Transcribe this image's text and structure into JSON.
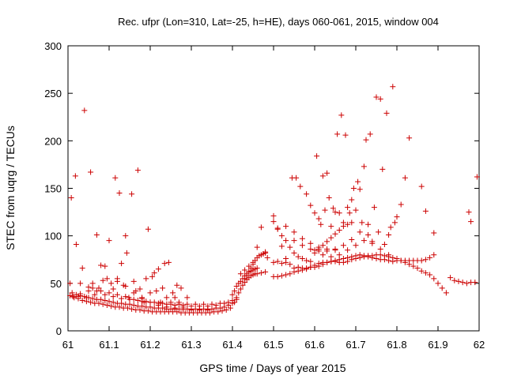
{
  "chart_data": {
    "type": "scatter",
    "title": "Rec. ufpr (Lon=310, Lat=-25, h=HE), days 060-061, 2015, window 004",
    "xlabel": "GPS time / Days of year 2015",
    "ylabel": "STEC from uqrg / TECUs",
    "xlim": [
      61,
      62
    ],
    "ylim": [
      0,
      300
    ],
    "xticks": [
      "61",
      "61.1",
      "61.2",
      "61.3",
      "61.4",
      "61.5",
      "61.6",
      "61.7",
      "61.8",
      "61.9",
      "62"
    ],
    "yticks": [
      "0",
      "50",
      "100",
      "150",
      "200",
      "250",
      "300"
    ],
    "grid": false,
    "marker": "plus",
    "color": "#cc0000",
    "points": [
      [
        61.005,
        50
      ],
      [
        61.008,
        140
      ],
      [
        61.012,
        36
      ],
      [
        61.018,
        163
      ],
      [
        61.02,
        91
      ],
      [
        61.025,
        36
      ],
      [
        61.03,
        39
      ],
      [
        61.035,
        66
      ],
      [
        61.04,
        232
      ],
      [
        61.045,
        35
      ],
      [
        61.05,
        42
      ],
      [
        61.055,
        167
      ],
      [
        61.06,
        50
      ],
      [
        61.065,
        38
      ],
      [
        61.07,
        101
      ],
      [
        61.075,
        45
      ],
      [
        61.08,
        69
      ],
      [
        61.085,
        53
      ],
      [
        61.09,
        68
      ],
      [
        61.095,
        55
      ],
      [
        61.1,
        95
      ],
      [
        61.105,
        50
      ],
      [
        61.11,
        44
      ],
      [
        61.115,
        161
      ],
      [
        61.12,
        52
      ],
      [
        61.125,
        145
      ],
      [
        61.13,
        71
      ],
      [
        61.135,
        48
      ],
      [
        61.14,
        100
      ],
      [
        61.143,
        82
      ],
      [
        61.148,
        35
      ],
      [
        61.155,
        144
      ],
      [
        61.16,
        52
      ],
      [
        61.165,
        42
      ],
      [
        61.17,
        169
      ],
      [
        61.175,
        44
      ],
      [
        61.18,
        35
      ],
      [
        61.185,
        30
      ],
      [
        61.19,
        55
      ],
      [
        61.195,
        107
      ],
      [
        61.2,
        40
      ],
      [
        61.205,
        57
      ],
      [
        61.21,
        61
      ],
      [
        61.215,
        42
      ],
      [
        61.22,
        65
      ],
      [
        61.225,
        30
      ],
      [
        61.23,
        45
      ],
      [
        61.235,
        71
      ],
      [
        61.24,
        35
      ],
      [
        61.245,
        72
      ],
      [
        61.25,
        30
      ],
      [
        61.255,
        40
      ],
      [
        61.26,
        35
      ],
      [
        61.265,
        48
      ],
      [
        61.27,
        30
      ],
      [
        61.275,
        45
      ],
      [
        61.28,
        25
      ],
      [
        61.29,
        35
      ],
      [
        61.005,
        37
      ],
      [
        61.015,
        35
      ],
      [
        61.025,
        34
      ],
      [
        61.035,
        32
      ],
      [
        61.045,
        31
      ],
      [
        61.055,
        30
      ],
      [
        61.065,
        29
      ],
      [
        61.075,
        29
      ],
      [
        61.085,
        28
      ],
      [
        61.095,
        27
      ],
      [
        61.105,
        26
      ],
      [
        61.115,
        25
      ],
      [
        61.125,
        25
      ],
      [
        61.135,
        24
      ],
      [
        61.145,
        24
      ],
      [
        61.155,
        23
      ],
      [
        61.165,
        22
      ],
      [
        61.175,
        22
      ],
      [
        61.185,
        21
      ],
      [
        61.195,
        21
      ],
      [
        61.205,
        20
      ],
      [
        61.215,
        20
      ],
      [
        61.225,
        20
      ],
      [
        61.235,
        20
      ],
      [
        61.245,
        20
      ],
      [
        61.255,
        20
      ],
      [
        61.265,
        20
      ],
      [
        61.275,
        19
      ],
      [
        61.285,
        19
      ],
      [
        61.295,
        19
      ],
      [
        61.305,
        19
      ],
      [
        61.315,
        19
      ],
      [
        61.325,
        19
      ],
      [
        61.335,
        19
      ],
      [
        61.345,
        19
      ],
      [
        61.355,
        20
      ],
      [
        61.365,
        20
      ],
      [
        61.375,
        21
      ],
      [
        61.385,
        22
      ],
      [
        61.395,
        24
      ],
      [
        61.01,
        40
      ],
      [
        61.02,
        38
      ],
      [
        61.03,
        37
      ],
      [
        61.04,
        36
      ],
      [
        61.05,
        35
      ],
      [
        61.06,
        34
      ],
      [
        61.07,
        33
      ],
      [
        61.08,
        33
      ],
      [
        61.09,
        32
      ],
      [
        61.1,
        31
      ],
      [
        61.11,
        30
      ],
      [
        61.12,
        29
      ],
      [
        61.13,
        29
      ],
      [
        61.14,
        28
      ],
      [
        61.15,
        28
      ],
      [
        61.16,
        27
      ],
      [
        61.17,
        26
      ],
      [
        61.18,
        26
      ],
      [
        61.19,
        25
      ],
      [
        61.2,
        25
      ],
      [
        61.21,
        24
      ],
      [
        61.22,
        24
      ],
      [
        61.23,
        24
      ],
      [
        61.24,
        23
      ],
      [
        61.25,
        23
      ],
      [
        61.26,
        23
      ],
      [
        61.27,
        23
      ],
      [
        61.28,
        23
      ],
      [
        61.29,
        23
      ],
      [
        61.3,
        23
      ],
      [
        61.31,
        23
      ],
      [
        61.32,
        23
      ],
      [
        61.33,
        23
      ],
      [
        61.34,
        23
      ],
      [
        61.35,
        23
      ],
      [
        61.36,
        24
      ],
      [
        61.37,
        24
      ],
      [
        61.38,
        25
      ],
      [
        61.39,
        27
      ],
      [
        61.4,
        29
      ],
      [
        61.03,
        50
      ],
      [
        61.05,
        46
      ],
      [
        61.07,
        42
      ],
      [
        61.09,
        38
      ],
      [
        61.11,
        36
      ],
      [
        61.13,
        34
      ],
      [
        61.15,
        33
      ],
      [
        61.17,
        32
      ],
      [
        61.19,
        31
      ],
      [
        61.21,
        30
      ],
      [
        61.23,
        29
      ],
      [
        61.25,
        28
      ],
      [
        61.27,
        28
      ],
      [
        61.29,
        28
      ],
      [
        61.31,
        28
      ],
      [
        61.33,
        28
      ],
      [
        61.35,
        28
      ],
      [
        61.37,
        29
      ],
      [
        61.39,
        30
      ],
      [
        61.41,
        33
      ],
      [
        61.06,
        45
      ],
      [
        61.08,
        42
      ],
      [
        61.1,
        40
      ],
      [
        61.12,
        38
      ],
      [
        61.14,
        36
      ],
      [
        61.16,
        33
      ],
      [
        61.18,
        31
      ],
      [
        61.2,
        30
      ],
      [
        61.22,
        29
      ],
      [
        61.24,
        28
      ],
      [
        61.26,
        27
      ],
      [
        61.28,
        27
      ],
      [
        61.3,
        26
      ],
      [
        61.32,
        26
      ],
      [
        61.34,
        26
      ],
      [
        61.36,
        27
      ],
      [
        61.38,
        29
      ],
      [
        61.4,
        32
      ],
      [
        61.12,
        55
      ],
      [
        61.14,
        47
      ],
      [
        61.16,
        40
      ],
      [
        61.18,
        34
      ],
      [
        61.2,
        30
      ],
      [
        61.22,
        27
      ],
      [
        61.24,
        25
      ],
      [
        61.26,
        24
      ],
      [
        61.28,
        23
      ],
      [
        61.3,
        22
      ],
      [
        61.32,
        22
      ],
      [
        61.34,
        22
      ],
      [
        61.4,
        38
      ],
      [
        61.405,
        42
      ],
      [
        61.41,
        47
      ],
      [
        61.415,
        50
      ],
      [
        61.42,
        52
      ],
      [
        61.425,
        55
      ],
      [
        61.43,
        58
      ],
      [
        61.435,
        60
      ],
      [
        61.44,
        62
      ],
      [
        61.445,
        63
      ],
      [
        61.45,
        64
      ],
      [
        61.455,
        65
      ],
      [
        61.46,
        66
      ],
      [
        61.405,
        30
      ],
      [
        61.41,
        35
      ],
      [
        61.415,
        40
      ],
      [
        61.42,
        44
      ],
      [
        61.425,
        48
      ],
      [
        61.43,
        51
      ],
      [
        61.435,
        54
      ],
      [
        61.44,
        56
      ],
      [
        61.445,
        58
      ],
      [
        61.45,
        59
      ],
      [
        61.455,
        60
      ],
      [
        61.46,
        60
      ],
      [
        61.47,
        61
      ],
      [
        61.48,
        62
      ],
      [
        61.43,
        55
      ],
      [
        61.435,
        58
      ],
      [
        61.44,
        62
      ],
      [
        61.445,
        66
      ],
      [
        61.45,
        70
      ],
      [
        61.455,
        74
      ],
      [
        61.46,
        77
      ],
      [
        61.465,
        79
      ],
      [
        61.47,
        80
      ],
      [
        61.475,
        81
      ],
      [
        61.48,
        82
      ],
      [
        61.42,
        60
      ],
      [
        61.43,
        64
      ],
      [
        61.44,
        68
      ],
      [
        61.45,
        72
      ],
      [
        61.46,
        88
      ],
      [
        61.47,
        109
      ],
      [
        61.48,
        83
      ],
      [
        61.485,
        77
      ],
      [
        61.5,
        57
      ],
      [
        61.51,
        57
      ],
      [
        61.52,
        58
      ],
      [
        61.53,
        59
      ],
      [
        61.54,
        60
      ],
      [
        61.55,
        62
      ],
      [
        61.56,
        63
      ],
      [
        61.57,
        64
      ],
      [
        61.58,
        65
      ],
      [
        61.59,
        67
      ],
      [
        61.6,
        69
      ],
      [
        61.61,
        71
      ],
      [
        61.62,
        72
      ],
      [
        61.63,
        72
      ],
      [
        61.64,
        73
      ],
      [
        61.65,
        73
      ],
      [
        61.66,
        72
      ],
      [
        61.67,
        72
      ],
      [
        61.68,
        73
      ],
      [
        61.69,
        75
      ],
      [
        61.7,
        76
      ],
      [
        61.71,
        77
      ],
      [
        61.72,
        78
      ],
      [
        61.73,
        79
      ],
      [
        61.74,
        79
      ],
      [
        61.75,
        80
      ],
      [
        61.76,
        80
      ],
      [
        61.77,
        79
      ],
      [
        61.78,
        78
      ],
      [
        61.79,
        77
      ],
      [
        61.8,
        76
      ],
      [
        61.81,
        74
      ],
      [
        61.82,
        72
      ],
      [
        61.83,
        70
      ],
      [
        61.84,
        68
      ],
      [
        61.85,
        66
      ],
      [
        61.86,
        63
      ],
      [
        61.87,
        61
      ],
      [
        61.88,
        59
      ],
      [
        61.89,
        55
      ],
      [
        61.9,
        50
      ],
      [
        61.91,
        45
      ],
      [
        61.92,
        40
      ],
      [
        61.93,
        56
      ],
      [
        61.94,
        53
      ],
      [
        61.95,
        52
      ],
      [
        61.96,
        51
      ],
      [
        61.97,
        50
      ],
      [
        61.98,
        51
      ],
      [
        61.99,
        51
      ],
      [
        61.5,
        72
      ],
      [
        61.51,
        73
      ],
      [
        61.52,
        71
      ],
      [
        61.53,
        72
      ],
      [
        61.54,
        70
      ],
      [
        61.55,
        66
      ],
      [
        61.56,
        67
      ],
      [
        61.57,
        66
      ],
      [
        61.58,
        66
      ],
      [
        61.59,
        67
      ],
      [
        61.6,
        67
      ],
      [
        61.61,
        68
      ],
      [
        61.62,
        70
      ],
      [
        61.63,
        72
      ],
      [
        61.64,
        73
      ],
      [
        61.65,
        74
      ],
      [
        61.66,
        75
      ],
      [
        61.67,
        76
      ],
      [
        61.68,
        77
      ],
      [
        61.69,
        78
      ],
      [
        61.7,
        79
      ],
      [
        61.71,
        80
      ],
      [
        61.72,
        79
      ],
      [
        61.73,
        78
      ],
      [
        61.74,
        77
      ],
      [
        61.75,
        76
      ],
      [
        61.76,
        75
      ],
      [
        61.77,
        75
      ],
      [
        61.78,
        74
      ],
      [
        61.79,
        73
      ],
      [
        61.8,
        74
      ],
      [
        61.81,
        74
      ],
      [
        61.82,
        74
      ],
      [
        61.83,
        74
      ],
      [
        61.84,
        74
      ],
      [
        61.85,
        74
      ],
      [
        61.86,
        74
      ],
      [
        61.87,
        75
      ],
      [
        61.88,
        77
      ],
      [
        61.89,
        80
      ],
      [
        61.5,
        115
      ],
      [
        61.51,
        108
      ],
      [
        61.52,
        100
      ],
      [
        61.53,
        95
      ],
      [
        61.54,
        88
      ],
      [
        61.55,
        82
      ],
      [
        61.56,
        78
      ],
      [
        61.57,
        76
      ],
      [
        61.58,
        74
      ],
      [
        61.59,
        73
      ],
      [
        61.5,
        121
      ],
      [
        61.51,
        107
      ],
      [
        61.52,
        89
      ],
      [
        61.53,
        76
      ],
      [
        61.545,
        161
      ],
      [
        61.555,
        161
      ],
      [
        61.565,
        152
      ],
      [
        61.58,
        144
      ],
      [
        61.59,
        132
      ],
      [
        61.6,
        124
      ],
      [
        61.605,
        184
      ],
      [
        61.61,
        118
      ],
      [
        61.615,
        112
      ],
      [
        61.62,
        163
      ],
      [
        61.625,
        127
      ],
      [
        61.63,
        166
      ],
      [
        61.635,
        140
      ],
      [
        61.64,
        110
      ],
      [
        61.645,
        129
      ],
      [
        61.65,
        125
      ],
      [
        61.655,
        207
      ],
      [
        61.66,
        124
      ],
      [
        61.665,
        227
      ],
      [
        61.67,
        114
      ],
      [
        61.675,
        206
      ],
      [
        61.68,
        130
      ],
      [
        61.685,
        124
      ],
      [
        61.69,
        138
      ],
      [
        61.695,
        150
      ],
      [
        61.7,
        127
      ],
      [
        61.705,
        157
      ],
      [
        61.71,
        149
      ],
      [
        61.715,
        114
      ],
      [
        61.72,
        173
      ],
      [
        61.725,
        201
      ],
      [
        61.73,
        101
      ],
      [
        61.735,
        207
      ],
      [
        61.74,
        94
      ],
      [
        61.745,
        130
      ],
      [
        61.75,
        246
      ],
      [
        61.755,
        104
      ],
      [
        61.76,
        244
      ],
      [
        61.765,
        170
      ],
      [
        61.77,
        91
      ],
      [
        61.775,
        229
      ],
      [
        61.78,
        101
      ],
      [
        61.785,
        109
      ],
      [
        61.79,
        257
      ],
      [
        61.795,
        114
      ],
      [
        61.8,
        120
      ],
      [
        61.81,
        133
      ],
      [
        61.82,
        161
      ],
      [
        61.83,
        203
      ],
      [
        61.86,
        152
      ],
      [
        61.87,
        126
      ],
      [
        61.89,
        103
      ],
      [
        61.975,
        125
      ],
      [
        61.98,
        115
      ],
      [
        61.995,
        162
      ],
      [
        61.6,
        82
      ],
      [
        61.61,
        86
      ],
      [
        61.62,
        90
      ],
      [
        61.63,
        94
      ],
      [
        61.64,
        98
      ],
      [
        61.65,
        102
      ],
      [
        61.66,
        106
      ],
      [
        61.67,
        110
      ],
      [
        61.68,
        112
      ],
      [
        61.69,
        114
      ],
      [
        61.6,
        85
      ],
      [
        61.62,
        80
      ],
      [
        61.64,
        78
      ],
      [
        61.66,
        80
      ],
      [
        61.68,
        85
      ],
      [
        61.7,
        90
      ],
      [
        61.72,
        95
      ],
      [
        61.74,
        92
      ],
      [
        61.76,
        86
      ],
      [
        61.78,
        80
      ],
      [
        61.55,
        95
      ],
      [
        61.57,
        90
      ],
      [
        61.59,
        86
      ],
      [
        61.61,
        84
      ],
      [
        61.63,
        84
      ],
      [
        61.65,
        86
      ],
      [
        61.67,
        90
      ],
      [
        61.69,
        96
      ],
      [
        61.71,
        104
      ],
      [
        61.73,
        112
      ],
      [
        61.53,
        110
      ],
      [
        61.55,
        104
      ],
      [
        61.57,
        97
      ],
      [
        61.59,
        92
      ],
      [
        61.61,
        88
      ],
      [
        61.63,
        86
      ],
      [
        61.65,
        85
      ]
    ]
  }
}
